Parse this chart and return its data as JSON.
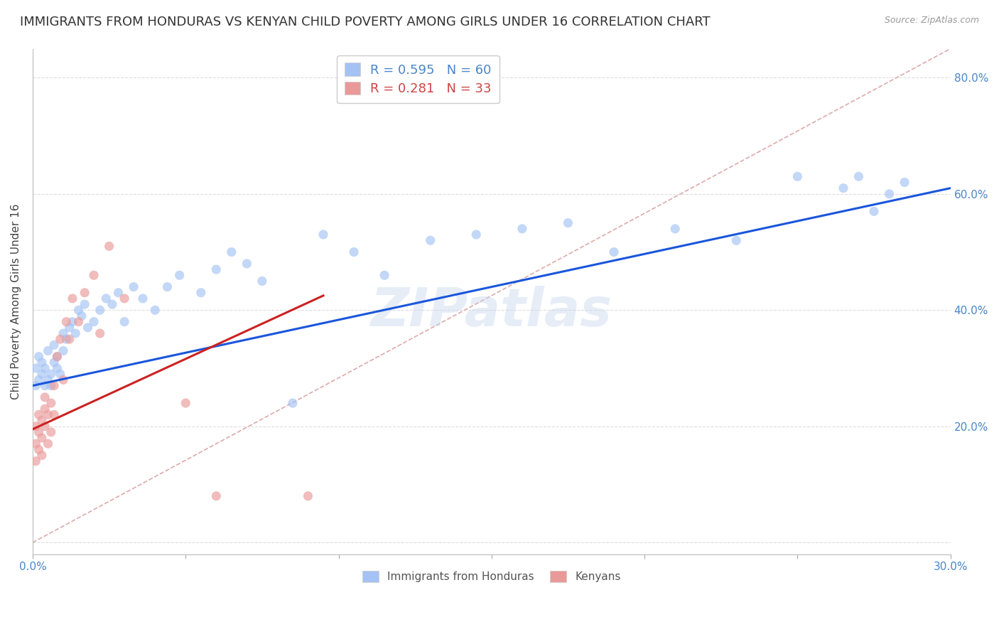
{
  "title": "IMMIGRANTS FROM HONDURAS VS KENYAN CHILD POVERTY AMONG GIRLS UNDER 16 CORRELATION CHART",
  "source": "Source: ZipAtlas.com",
  "ylabel": "Child Poverty Among Girls Under 16",
  "xlim": [
    0.0,
    0.3
  ],
  "ylim": [
    -0.02,
    0.85
  ],
  "xticks": [
    0.0,
    0.05,
    0.1,
    0.15,
    0.2,
    0.25,
    0.3
  ],
  "xtick_labels": [
    "0.0%",
    "",
    "",
    "",
    "",
    "",
    "30.0%"
  ],
  "yticks": [
    0.0,
    0.2,
    0.4,
    0.6,
    0.8
  ],
  "ytick_labels": [
    "",
    "20.0%",
    "40.0%",
    "60.0%",
    "80.0%"
  ],
  "legend1_label": "R = 0.595   N = 60",
  "legend2_label": "R = 0.281   N = 33",
  "legend1_color": "#a4c2f4",
  "legend2_color": "#ea9999",
  "watermark": "ZIPatlas",
  "blue_scatter_x": [
    0.001,
    0.001,
    0.002,
    0.002,
    0.003,
    0.003,
    0.004,
    0.004,
    0.005,
    0.005,
    0.006,
    0.006,
    0.007,
    0.007,
    0.008,
    0.008,
    0.009,
    0.01,
    0.01,
    0.011,
    0.012,
    0.013,
    0.014,
    0.015,
    0.016,
    0.017,
    0.018,
    0.02,
    0.022,
    0.024,
    0.026,
    0.028,
    0.03,
    0.033,
    0.036,
    0.04,
    0.044,
    0.048,
    0.055,
    0.06,
    0.065,
    0.07,
    0.075,
    0.085,
    0.095,
    0.105,
    0.115,
    0.13,
    0.145,
    0.16,
    0.175,
    0.19,
    0.21,
    0.23,
    0.25,
    0.265,
    0.27,
    0.275,
    0.28,
    0.285
  ],
  "blue_scatter_y": [
    0.27,
    0.3,
    0.28,
    0.32,
    0.29,
    0.31,
    0.27,
    0.3,
    0.28,
    0.33,
    0.29,
    0.27,
    0.31,
    0.34,
    0.3,
    0.32,
    0.29,
    0.33,
    0.36,
    0.35,
    0.37,
    0.38,
    0.36,
    0.4,
    0.39,
    0.41,
    0.37,
    0.38,
    0.4,
    0.42,
    0.41,
    0.43,
    0.38,
    0.44,
    0.42,
    0.4,
    0.44,
    0.46,
    0.43,
    0.47,
    0.5,
    0.48,
    0.45,
    0.24,
    0.53,
    0.5,
    0.46,
    0.52,
    0.53,
    0.54,
    0.55,
    0.5,
    0.54,
    0.52,
    0.63,
    0.61,
    0.63,
    0.57,
    0.6,
    0.62
  ],
  "pink_scatter_x": [
    0.001,
    0.001,
    0.001,
    0.002,
    0.002,
    0.002,
    0.003,
    0.003,
    0.003,
    0.004,
    0.004,
    0.004,
    0.005,
    0.005,
    0.006,
    0.006,
    0.007,
    0.007,
    0.008,
    0.009,
    0.01,
    0.011,
    0.012,
    0.013,
    0.015,
    0.017,
    0.02,
    0.022,
    0.025,
    0.03,
    0.05,
    0.06,
    0.09
  ],
  "pink_scatter_y": [
    0.2,
    0.17,
    0.14,
    0.19,
    0.16,
    0.22,
    0.21,
    0.18,
    0.15,
    0.23,
    0.25,
    0.2,
    0.22,
    0.17,
    0.24,
    0.19,
    0.27,
    0.22,
    0.32,
    0.35,
    0.28,
    0.38,
    0.35,
    0.42,
    0.38,
    0.43,
    0.46,
    0.36,
    0.51,
    0.42,
    0.24,
    0.08,
    0.08
  ],
  "blue_line_x": [
    0.0,
    0.3
  ],
  "blue_line_y": [
    0.27,
    0.61
  ],
  "pink_line_x": [
    0.0,
    0.095
  ],
  "pink_line_y": [
    0.195,
    0.425
  ],
  "diag_line_color": "#ddaaaa",
  "diag_line_style": "--",
  "blue_line_color": "#1a56db",
  "pink_line_color": "#cc2222",
  "grid_color": "#dddddd",
  "background_color": "#ffffff",
  "title_fontsize": 13,
  "axis_label_fontsize": 11,
  "tick_fontsize": 11,
  "scatter_size": 90,
  "blue_color": "#a4c2f4",
  "pink_color": "#ea9999"
}
